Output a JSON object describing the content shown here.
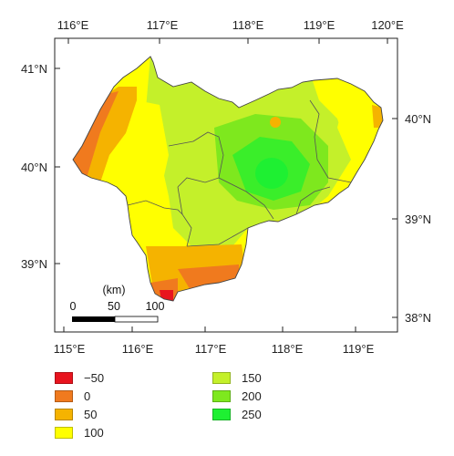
{
  "map": {
    "top_lon_labels": [
      "116°E",
      "117°E",
      "118°E",
      "119°E",
      "120°E"
    ],
    "bottom_lon_labels": [
      "115°E",
      "116°E",
      "117°E",
      "118°E",
      "119°E"
    ],
    "left_lat_labels": [
      "41°N",
      "40°N",
      "39°N"
    ],
    "right_lat_labels": [
      "40°N",
      "39°N",
      "38°N"
    ]
  },
  "scale_bar": {
    "unit": "(km)",
    "ticks": [
      "0",
      "50",
      "100"
    ]
  },
  "legend": [
    {
      "label": "−50",
      "color": "#e8141e"
    },
    {
      "label": "0",
      "color": "#f07a1e"
    },
    {
      "label": "50",
      "color": "#f5b300"
    },
    {
      "label": "100",
      "color": "#ffff00"
    },
    {
      "label": "150",
      "color": "#c4f02a"
    },
    {
      "label": "200",
      "color": "#7ee81e"
    },
    {
      "label": "250",
      "color": "#1ef032"
    }
  ],
  "colors": {
    "frame": "#222222",
    "boundary": "#555555"
  }
}
